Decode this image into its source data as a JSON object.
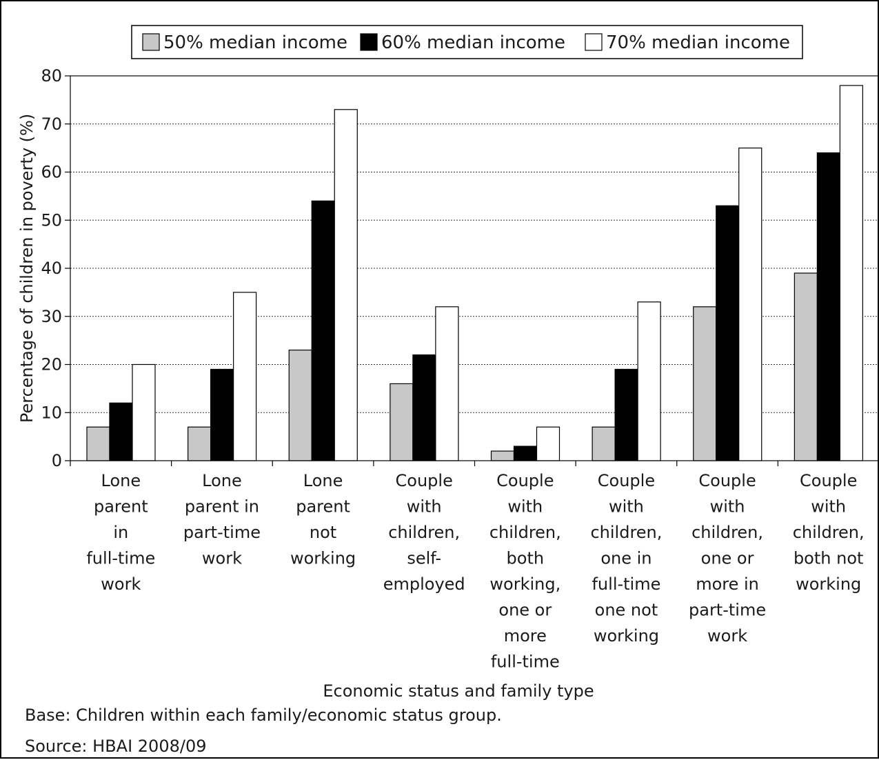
{
  "chart_data": {
    "type": "bar",
    "categories": [
      "Lone\nparent\nin\nfull-time\nwork",
      "Lone\nparent in\npart-time\nwork",
      "Lone\nparent\nnot\nworking",
      "Couple\nwith\nchildren,\nself-\nemployed",
      "Couple\nwith\nchildren,\nboth\nworking,\none or\nmore\nfull-time",
      "Couple\nwith\nchildren,\none in\nfull-time\none not\nworking",
      "Couple\nwith\nchildren,\none or\nmore in\npart-time\nwork",
      "Couple\nwith\nchildren,\nboth not\nworking"
    ],
    "series": [
      {
        "name": "50% median income",
        "color": "#c8c8c8",
        "values": [
          7,
          7,
          23,
          16,
          2,
          7,
          32,
          39
        ]
      },
      {
        "name": "60% median income",
        "color": "#000000",
        "values": [
          12,
          19,
          54,
          22,
          3,
          19,
          53,
          64
        ]
      },
      {
        "name": "70% median income",
        "color": "#ffffff",
        "values": [
          20,
          35,
          73,
          32,
          7,
          33,
          65,
          78
        ]
      }
    ],
    "title": "",
    "xlabel": "Economic status and family type",
    "ylabel": "Percentage of children in poverty (%)",
    "ylim": [
      0,
      80
    ],
    "yticks": [
      0,
      10,
      20,
      30,
      40,
      50,
      60,
      70,
      80
    ],
    "grid": "horizontal dotted",
    "legend": "top-center"
  },
  "notes": {
    "base": "Base: Children within each family/economic status group.",
    "source": "Source: HBAI 2008/09"
  }
}
